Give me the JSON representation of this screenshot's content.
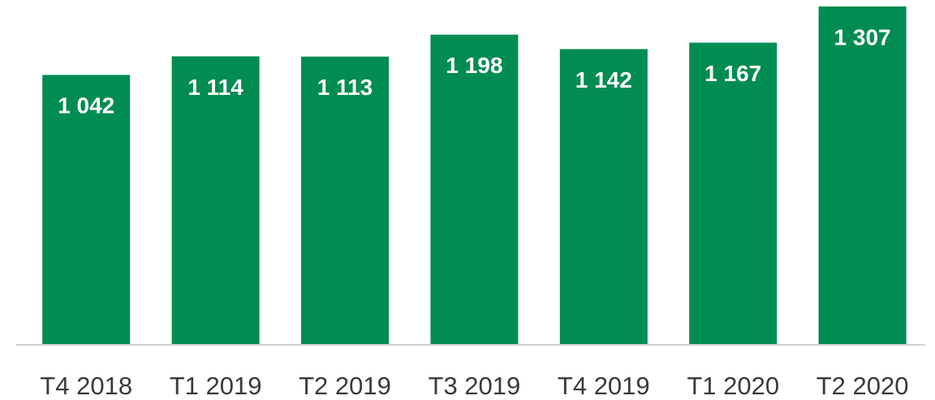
{
  "chart_data": {
    "type": "bar",
    "categories": [
      "T4 2018",
      "T1 2019",
      "T2 2019",
      "T3 2019",
      "T4 2019",
      "T1 2020",
      "T2 2020"
    ],
    "values": [
      1042,
      1114,
      1113,
      1198,
      1142,
      1167,
      1307
    ],
    "value_labels": [
      "1 042",
      "1 114",
      "1 113",
      "1 198",
      "1 142",
      "1 167",
      "1 307"
    ],
    "color": "#008c52"
  }
}
